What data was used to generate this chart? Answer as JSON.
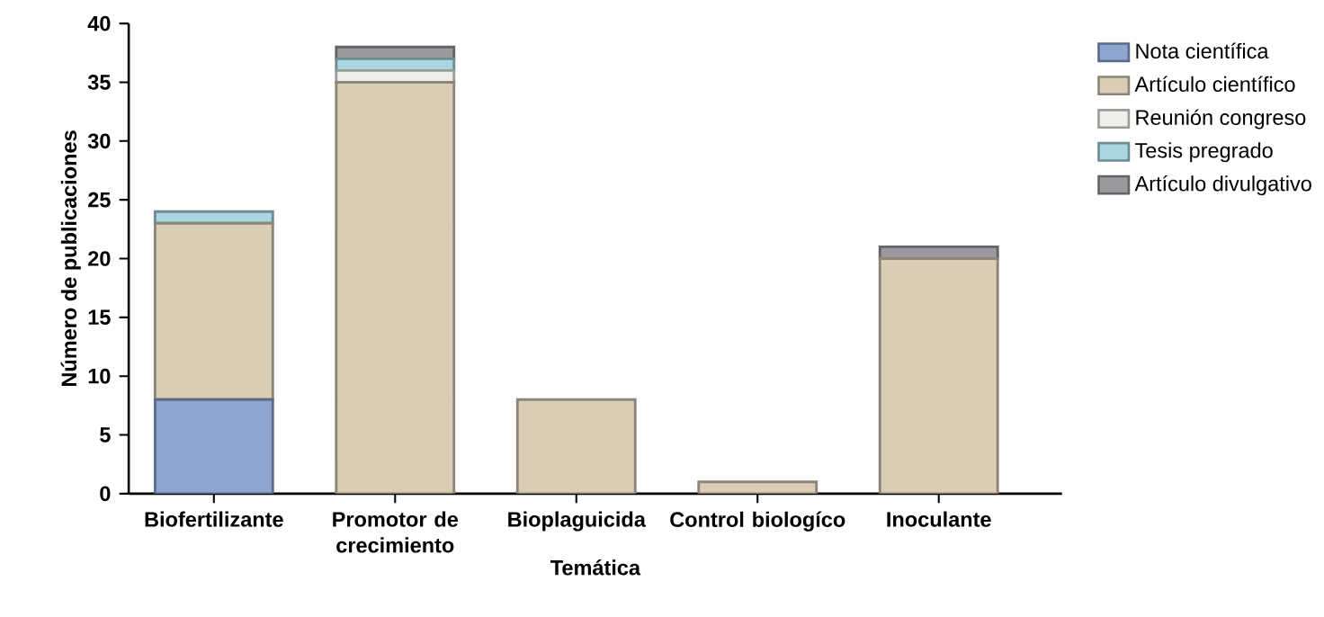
{
  "chart_data": {
    "type": "bar",
    "stacked": true,
    "xlabel": "Temática",
    "ylabel": "Número de publicaciones",
    "categories": [
      "Biofertilizante",
      "Promotor de crecimiento",
      "Bioplaguicida",
      "Control biologíco",
      "Inoculante"
    ],
    "series": [
      {
        "name": "Nota científica",
        "color": "#8da5d0",
        "values": [
          8,
          0,
          0,
          0,
          0
        ]
      },
      {
        "name": "Artículo científico",
        "color": "#d9cdb5",
        "values": [
          15,
          35,
          8,
          1,
          20
        ]
      },
      {
        "name": "Reunión congreso",
        "color": "#eeeeea",
        "values": [
          0,
          1,
          0,
          0,
          0
        ]
      },
      {
        "name": "Tesis pregrado",
        "color": "#a9d6e0",
        "values": [
          1,
          1,
          0,
          0,
          0
        ]
      },
      {
        "name": "Artículo divulgativo",
        "color": "#9a9a9e",
        "values": [
          0,
          1,
          0,
          0,
          1
        ]
      }
    ],
    "ylim": [
      0,
      40
    ],
    "yticks": [
      0,
      5,
      10,
      15,
      20,
      25,
      30,
      35,
      40
    ],
    "grid": false,
    "legend": "right"
  }
}
